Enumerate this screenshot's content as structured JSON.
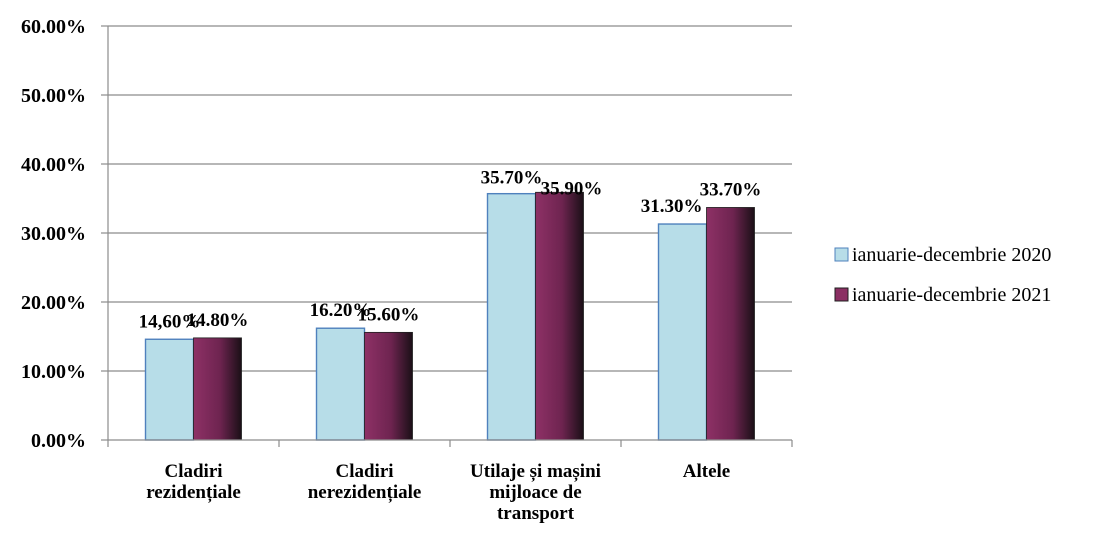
{
  "chart_data": {
    "type": "bar",
    "categories": [
      [
        "Cladiri",
        "rezidențiale"
      ],
      [
        "Cladiri",
        "nerezidențiale"
      ],
      [
        "Utilaje și mașini",
        "mijloace de",
        "transport"
      ],
      [
        "Altele"
      ]
    ],
    "series": [
      {
        "name": "ianuarie-decembrie 2020",
        "values": [
          14.6,
          16.2,
          35.7,
          31.3
        ],
        "labels": [
          "14,60%",
          "16.20%",
          "35.70%",
          "31.30%"
        ],
        "color": "#b7dde8",
        "edge": "#4f81bd"
      },
      {
        "name": "ianuarie-decembrie 2021",
        "values": [
          14.8,
          15.6,
          35.9,
          33.7
        ],
        "labels": [
          "14.80%",
          "15.60%",
          "35.90%",
          "33.70%"
        ],
        "color": "#8b2f63",
        "edge": "#1f1f1f"
      }
    ],
    "yticks": [
      "0.00%",
      "10.00%",
      "20.00%",
      "30.00%",
      "40.00%",
      "50.00%",
      "60.00%"
    ],
    "ylim": [
      0,
      60
    ],
    "grid": true,
    "legend": "right"
  }
}
